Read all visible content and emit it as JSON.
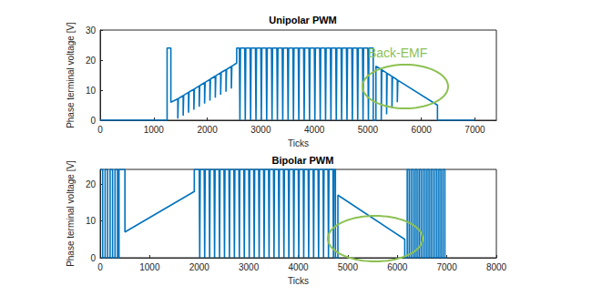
{
  "chart_data": [
    {
      "type": "line",
      "title": "Unipolar PWM",
      "x_label": "Ticks",
      "y_label": "Phase terminal voltage [V]",
      "color": "#0072bd",
      "grid": false,
      "xlim": [
        0,
        7400
      ],
      "xticks": [
        0,
        1000,
        2000,
        3000,
        4000,
        5000,
        6000,
        7000
      ],
      "ylim": [
        0,
        30
      ],
      "yticks": [
        0,
        10,
        20,
        30
      ],
      "annotations": [
        {
          "text": "Back-EMF",
          "color": "#8cc152"
        }
      ],
      "x": [
        0,
        1250,
        1250,
        1320,
        1320,
        1450,
        1450,
        1460,
        1550,
        1550,
        1560,
        1650,
        1650,
        1660,
        1750,
        1750,
        1760,
        1850,
        1850,
        1860,
        1950,
        1950,
        1960,
        2050,
        2050,
        2060,
        2150,
        2150,
        2160,
        2250,
        2250,
        2260,
        2350,
        2350,
        2360,
        2450,
        2450,
        2460,
        2550,
        2550,
        2600,
        2610,
        2620,
        2700,
        2710,
        2720,
        2800,
        2810,
        2820,
        2900,
        2910,
        2920,
        3000,
        3010,
        3020,
        3100,
        3110,
        3120,
        3200,
        3210,
        3220,
        3300,
        3310,
        3320,
        3400,
        3410,
        3420,
        3500,
        3510,
        3520,
        3600,
        3610,
        3620,
        3700,
        3710,
        3720,
        3800,
        3810,
        3820,
        3900,
        3910,
        3920,
        4000,
        4010,
        4020,
        4100,
        4110,
        4120,
        4200,
        4210,
        4220,
        4300,
        4310,
        4320,
        4400,
        4410,
        4420,
        4500,
        4510,
        4520,
        4600,
        4610,
        4620,
        4700,
        4710,
        4720,
        4800,
        4810,
        4820,
        4900,
        4910,
        4920,
        5000,
        5010,
        5020,
        5100,
        5100,
        5150,
        5150,
        5250,
        5250,
        5260,
        5350,
        5350,
        5360,
        5450,
        5450,
        5460,
        5550,
        5550,
        5560,
        6300,
        6300,
        7000
      ],
      "values": [
        0,
        0,
        24,
        24,
        6,
        7.1,
        0.5,
        7.2,
        8.2,
        1.5,
        8.3,
        9.3,
        2.5,
        9.4,
        10.3,
        3.5,
        10.4,
        11.4,
        4.5,
        11.5,
        12.5,
        5.5,
        12.6,
        13.6,
        6.5,
        13.7,
        14.7,
        7.5,
        14.8,
        15.8,
        8.5,
        15.9,
        16.8,
        9.5,
        16.9,
        17.9,
        10.5,
        18,
        19,
        24,
        24,
        0,
        24,
        24,
        0,
        24,
        24,
        0,
        24,
        24,
        0,
        24,
        24,
        0,
        24,
        24,
        0,
        24,
        24,
        0,
        24,
        24,
        0,
        24,
        24,
        0,
        24,
        24,
        0,
        24,
        24,
        0,
        24,
        24,
        0,
        24,
        24,
        0,
        24,
        24,
        0,
        24,
        24,
        0,
        24,
        24,
        0,
        24,
        24,
        0,
        24,
        24,
        0,
        24,
        24,
        0,
        24,
        24,
        0,
        24,
        24,
        0,
        24,
        24,
        0,
        24,
        24,
        0,
        24,
        24,
        0,
        24,
        24,
        0,
        24,
        24,
        0,
        0,
        18,
        16.9,
        0,
        16.8,
        15.7,
        2,
        15.6,
        14.6,
        4,
        14.5,
        13.4,
        6,
        13.3,
        5,
        0,
        0
      ]
    },
    {
      "type": "line",
      "title": "Bipolar PWM",
      "x_label": "Ticks",
      "y_label": "Phase terminal voltage [V]",
      "color": "#0072bd",
      "grid": false,
      "xlim": [
        0,
        8000
      ],
      "xticks": [
        0,
        1000,
        2000,
        3000,
        4000,
        5000,
        6000,
        7000,
        8000
      ],
      "ylim": [
        0,
        24
      ],
      "yticks": [
        0,
        10,
        20
      ],
      "x": [
        0,
        50,
        50,
        100,
        100,
        150,
        150,
        200,
        200,
        250,
        250,
        300,
        300,
        350,
        350,
        380,
        380,
        500,
        500,
        1900,
        1900,
        2000,
        2010,
        2020,
        2100,
        2110,
        2120,
        2200,
        2210,
        2220,
        2300,
        2310,
        2320,
        2400,
        2410,
        2420,
        2500,
        2510,
        2520,
        2600,
        2610,
        2620,
        2700,
        2710,
        2720,
        2800,
        2810,
        2820,
        2900,
        2910,
        2920,
        3000,
        3010,
        3020,
        3100,
        3110,
        3120,
        3200,
        3210,
        3220,
        3300,
        3310,
        3320,
        3400,
        3410,
        3420,
        3500,
        3510,
        3520,
        3600,
        3610,
        3620,
        3700,
        3710,
        3720,
        3800,
        3810,
        3820,
        3900,
        3910,
        3920,
        4000,
        4010,
        4020,
        4100,
        4110,
        4120,
        4200,
        4210,
        4220,
        4300,
        4310,
        4320,
        4400,
        4410,
        4420,
        4500,
        4510,
        4520,
        4600,
        4610,
        4620,
        4700,
        4710,
        4720,
        4750,
        4750,
        4800,
        4800,
        6150,
        6150,
        6200,
        6200,
        6240,
        6240,
        6280,
        6280,
        6320,
        6320,
        6360,
        6360,
        6400,
        6400,
        6440,
        6440,
        6480,
        6480,
        6520,
        6520,
        6560,
        6560,
        6600,
        6600,
        6640,
        6640,
        6680,
        6680,
        6720,
        6720,
        6760,
        6760,
        6800,
        6800,
        6840,
        6840,
        6880,
        6880,
        6920,
        6920,
        6960,
        6960,
        7000
      ],
      "values": [
        24,
        24,
        0,
        0,
        24,
        24,
        0,
        0,
        24,
        24,
        0,
        0,
        24,
        24,
        0,
        0,
        24,
        24,
        7,
        18,
        24,
        24,
        0,
        24,
        24,
        0,
        24,
        24,
        0,
        24,
        24,
        0,
        24,
        24,
        0,
        24,
        24,
        0,
        24,
        24,
        0,
        24,
        24,
        0,
        24,
        24,
        0,
        24,
        24,
        0,
        24,
        24,
        0,
        24,
        24,
        0,
        24,
        24,
        0,
        24,
        24,
        0,
        24,
        24,
        0,
        24,
        24,
        0,
        24,
        24,
        0,
        24,
        24,
        0,
        24,
        24,
        0,
        24,
        24,
        0,
        24,
        24,
        0,
        24,
        24,
        0,
        24,
        24,
        0,
        24,
        24,
        0,
        24,
        24,
        0,
        24,
        24,
        0,
        24,
        24,
        0,
        24,
        24,
        0,
        24,
        24,
        0,
        0,
        17,
        5,
        0,
        0,
        24,
        24,
        0,
        0,
        24,
        24,
        0,
        0,
        24,
        24,
        0,
        0,
        24,
        24,
        0,
        0,
        24,
        24,
        0,
        0,
        24,
        24,
        0,
        0,
        24,
        24,
        0,
        0,
        24,
        24,
        0,
        0,
        24,
        24,
        0,
        0,
        24,
        24,
        0,
        0
      ]
    }
  ]
}
